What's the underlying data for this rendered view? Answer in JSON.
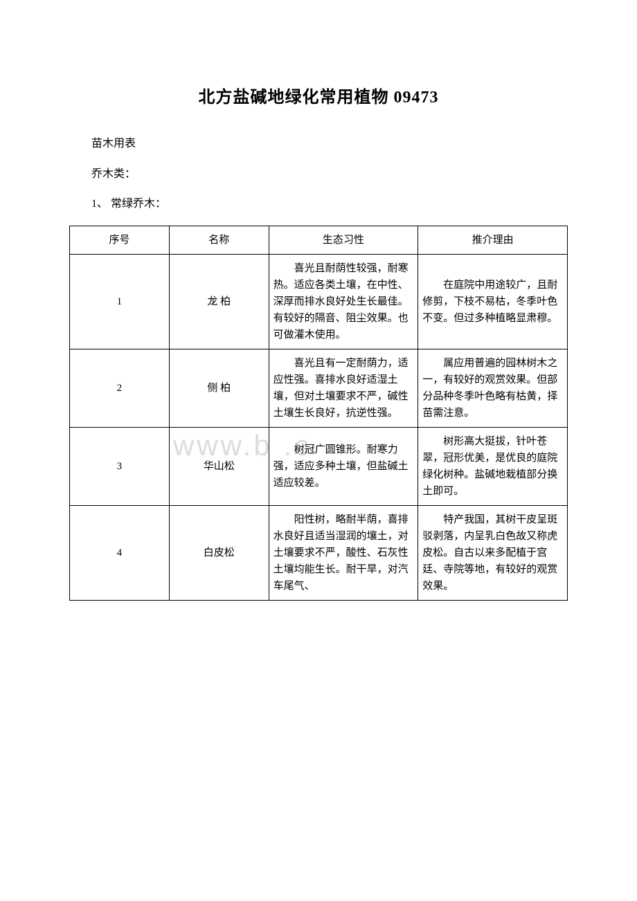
{
  "title": "北方盐碱地绿化常用植物 09473",
  "intro": {
    "line1": "苗木用表",
    "line2": "乔木类：",
    "line3": "1、 常绿乔木："
  },
  "watermark": "www.b    .c",
  "table": {
    "headers": {
      "h1": "序号",
      "h2": "名称",
      "h3": "生态习性",
      "h4": "推介理由"
    },
    "rows": [
      {
        "no": "1",
        "name": "龙 柏",
        "habit": "喜光且耐荫性较强，耐寒热。适应各类土壤，在中性、深厚而排水良好处生长最佳。有较好的隔音、阻尘效果。也可做灌木使用。",
        "reason": "在庭院中用途较广，且耐修剪，下枝不易枯，冬季叶色不变。但过多种植略显肃穆。"
      },
      {
        "no": "2",
        "name": "侧 柏",
        "habit": "喜光且有一定耐荫力，适应性强。喜排水良好适湿土壤，但对土壤要求不严，碱性土壤生长良好，抗逆性强。",
        "reason": "属应用普遍的园林树木之一，有较好的观赏效果。但部分品种冬季叶色略有枯黄，择苗需注意。"
      },
      {
        "no": "3",
        "name": "华山松",
        "habit": "树冠广圆锥形。耐寒力强，适应多种土壤，但盐碱土适应较差。",
        "reason": "树形高大挺拔，针叶苍翠，冠形优美，是优良的庭院绿化树种。盐碱地栽植部分换土即可。"
      },
      {
        "no": "4",
        "name": "白皮松",
        "habit": "阳性树，略耐半荫，喜排水良好且适当湿润的壤土，对土壤要求不严，酸性、石灰性土壤均能生长。耐干旱，对汽车尾气、",
        "reason": "特产我国，其树干皮呈斑驳剥落，内呈乳白色故又称虎皮松。自古以来多配植于宫廷、寺院等地，有较好的观赏效果。"
      }
    ]
  },
  "styles": {
    "background_color": "#ffffff",
    "text_color": "#000000",
    "border_color": "#000000",
    "watermark_color": "#dcdcdc",
    "title_fontsize": 24,
    "body_fontsize": 15,
    "intro_fontsize": 16,
    "watermark_fontsize": 42
  }
}
